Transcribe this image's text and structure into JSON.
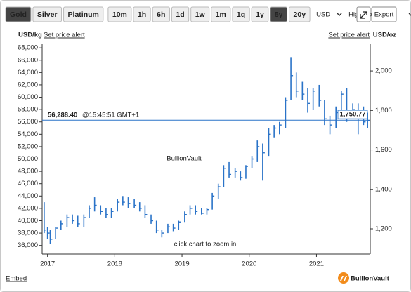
{
  "toolbar": {
    "metals": [
      "Gold",
      "Silver",
      "Platinum"
    ],
    "metal_active": 0,
    "ranges": [
      "10m",
      "1h",
      "6h",
      "1d",
      "1w",
      "1m",
      "1q",
      "1y",
      "5y",
      "20y"
    ],
    "range_active": 8,
    "currency": "USD",
    "style": "High-Low-Close",
    "export": "Export"
  },
  "header": {
    "unit_left": "USD/kg",
    "alert_left": "Set price alert",
    "alert_right": "Set price alert",
    "unit_right": "USD/oz"
  },
  "chart_data": {
    "type": "hlc",
    "color": "#2a73c8",
    "x": [
      2016.95,
      2017.0,
      2017.04,
      2017.12,
      2017.2,
      2017.29,
      2017.37,
      2017.45,
      2017.54,
      2017.62,
      2017.7,
      2017.79,
      2017.87,
      2017.95,
      2018.04,
      2018.12,
      2018.2,
      2018.29,
      2018.37,
      2018.45,
      2018.54,
      2018.62,
      2018.7,
      2018.79,
      2018.87,
      2018.95,
      2019.04,
      2019.12,
      2019.2,
      2019.29,
      2019.37,
      2019.45,
      2019.54,
      2019.62,
      2019.7,
      2019.79,
      2019.87,
      2019.95,
      2020.04,
      2020.12,
      2020.2,
      2020.29,
      2020.37,
      2020.45,
      2020.54,
      2020.62,
      2020.7,
      2020.79,
      2020.87,
      2020.95,
      2021.04,
      2021.12,
      2021.2,
      2021.29,
      2021.37,
      2021.45,
      2021.54,
      2021.62,
      2021.7,
      2021.76
    ],
    "high": [
      43000,
      39000,
      38500,
      39000,
      40000,
      41000,
      41000,
      40800,
      41000,
      42500,
      43800,
      42500,
      42000,
      42000,
      43500,
      44000,
      43800,
      43500,
      43000,
      42500,
      41000,
      40000,
      38500,
      39500,
      39500,
      40000,
      41500,
      42500,
      42500,
      42000,
      42000,
      44500,
      46000,
      49000,
      49500,
      48500,
      48000,
      49000,
      50500,
      53000,
      52500,
      55000,
      55500,
      56000,
      60000,
      66500,
      64000,
      62500,
      61500,
      61500,
      62000,
      59500,
      57000,
      58500,
      61000,
      61500,
      59000,
      59000,
      58500,
      57500
    ],
    "low": [
      38000,
      37000,
      36300,
      37000,
      38500,
      39000,
      39500,
      39000,
      39000,
      40500,
      41500,
      41000,
      40500,
      40500,
      41500,
      42500,
      42000,
      42000,
      41500,
      40500,
      39500,
      38000,
      37300,
      38000,
      38300,
      38500,
      39800,
      41000,
      41000,
      41000,
      41000,
      41800,
      43500,
      45500,
      47000,
      47000,
      46500,
      46800,
      48500,
      49500,
      46500,
      50500,
      53500,
      54000,
      55000,
      59500,
      60000,
      59500,
      57500,
      58000,
      58500,
      55500,
      54000,
      55000,
      57500,
      56000,
      56500,
      54000,
      55500,
      55000
    ],
    "close": [
      38500,
      38000,
      37000,
      38800,
      39500,
      40500,
      40000,
      39500,
      40500,
      42000,
      42500,
      41500,
      41000,
      41500,
      43000,
      43000,
      42800,
      42500,
      42000,
      41000,
      40000,
      38500,
      38000,
      39000,
      38800,
      39800,
      41000,
      42000,
      41500,
      41200,
      41800,
      44000,
      45500,
      48500,
      47500,
      48000,
      47000,
      48800,
      50000,
      52000,
      51000,
      54000,
      55000,
      55500,
      59500,
      63500,
      61000,
      60500,
      59000,
      61000,
      59500,
      56500,
      55500,
      57500,
      60500,
      57000,
      58000,
      57500,
      56000,
      56200
    ],
    "xlim": [
      2016.92,
      2021.8
    ],
    "xticks": [
      2017,
      2018,
      2019,
      2020,
      2021
    ],
    "ylim": [
      34600,
      68700
    ],
    "yticks": [
      {
        "value": 36000,
        "label": "36,000"
      },
      {
        "value": 38000,
        "label": "38,000"
      },
      {
        "value": 40000,
        "label": "40,000"
      },
      {
        "value": 42000,
        "label": "42,000"
      },
      {
        "value": 44000,
        "label": "44,000"
      },
      {
        "value": 46000,
        "label": "46,000"
      },
      {
        "value": 48000,
        "label": "48,000"
      },
      {
        "value": 50000,
        "label": "50,000"
      },
      {
        "value": 52000,
        "label": "52,000"
      },
      {
        "value": 54000,
        "label": "54,000"
      },
      {
        "value": 56000,
        "label": "56,000"
      },
      {
        "value": 58000,
        "label": "58,000"
      },
      {
        "value": 60000,
        "label": "60,000"
      },
      {
        "value": 62000,
        "label": "62,000"
      },
      {
        "value": 64000,
        "label": "64,000"
      },
      {
        "value": 66000,
        "label": "66,000"
      },
      {
        "value": 68000,
        "label": "68,000"
      }
    ],
    "y2lim": [
      1072,
      2139
    ],
    "y2ticks": [
      {
        "value": 1200,
        "label": "1,200"
      },
      {
        "value": 1400,
        "label": "1,400"
      },
      {
        "value": 1600,
        "label": "1,600"
      },
      {
        "value": 1800,
        "label": "1,800"
      },
      {
        "value": 2000,
        "label": "2,000"
      }
    ],
    "grid": false,
    "current_price": {
      "value": 56288.4,
      "label": "56,288.40"
    },
    "current_time": "@15:45:51 GMT+1",
    "current_price_oz": {
      "value": 1750.77,
      "label": "1,750.77"
    },
    "watermark": "BullionVault",
    "hint": "click chart to zoom in"
  },
  "footer": {
    "embed": "Embed",
    "logo": "BullionVault"
  }
}
